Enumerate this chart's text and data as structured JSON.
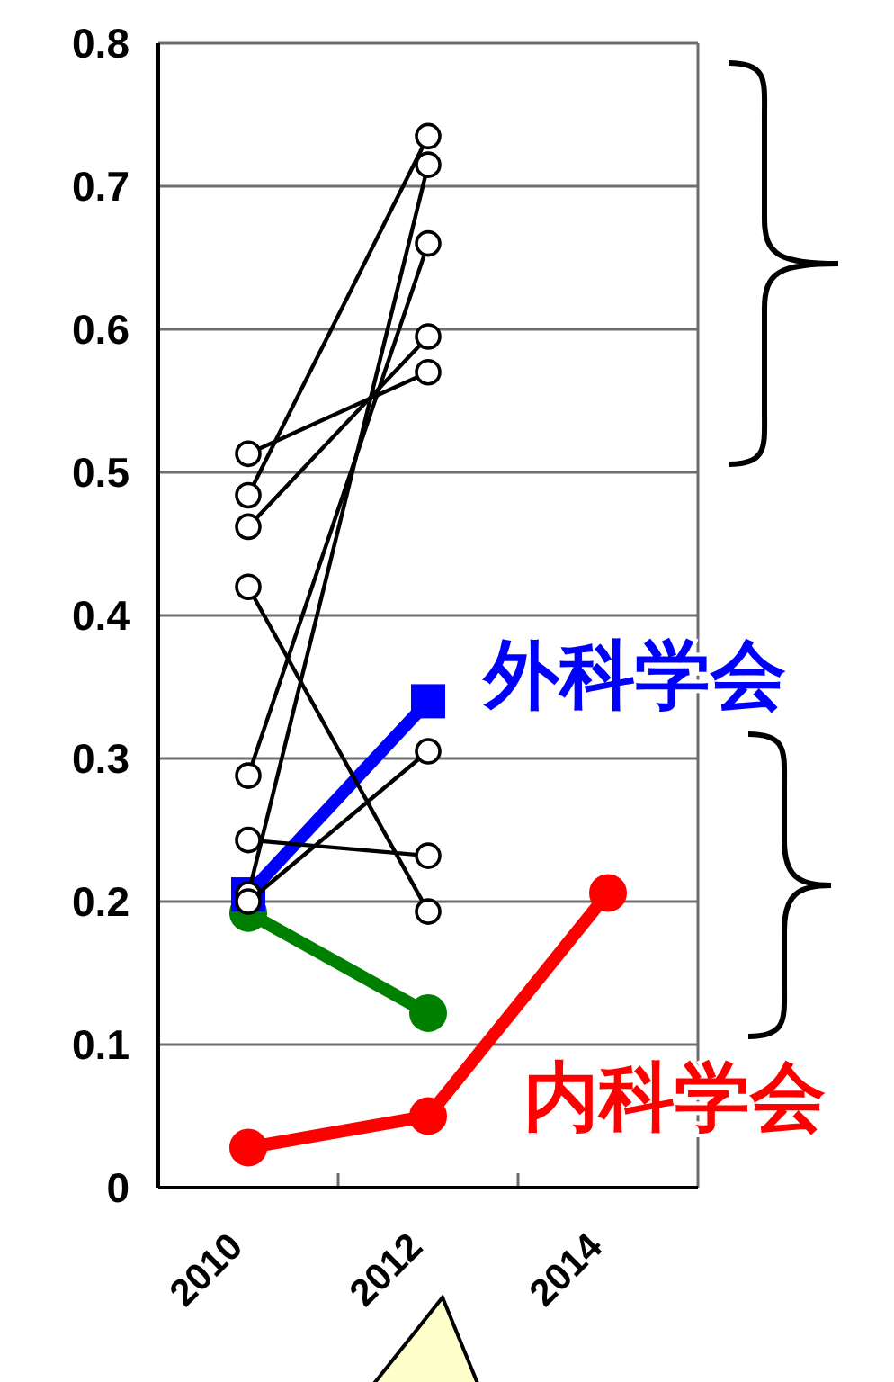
{
  "chart_data": {
    "type": "line",
    "categories": [
      "2010",
      "2012",
      "2014"
    ],
    "ylim": [
      0,
      0.8
    ],
    "yticks": [
      0,
      0.1,
      0.2,
      0.3,
      0.4,
      0.5,
      0.6,
      0.7,
      0.8
    ],
    "grid": "y",
    "marker": "circle",
    "line_style": "solid",
    "series": [
      {
        "color": "#000000",
        "values": [
          0.484,
          0.735,
          null
        ]
      },
      {
        "color": "#000000",
        "values": [
          0.205,
          0.715,
          null
        ]
      },
      {
        "color": "#000000",
        "values": [
          0.288,
          0.66,
          null
        ]
      },
      {
        "color": "#000000",
        "values": [
          0.462,
          0.595,
          null
        ]
      },
      {
        "color": "#000000",
        "values": [
          0.513,
          0.57,
          null
        ]
      },
      {
        "color": "#000000",
        "values": [
          0.2,
          0.305,
          null
        ]
      },
      {
        "color": "#000000",
        "values": [
          0.243,
          0.232,
          null
        ]
      },
      {
        "color": "#000000",
        "values": [
          0.42,
          0.193,
          null
        ]
      },
      {
        "color": "#008000",
        "values": [
          0.192,
          0.122,
          null
        ]
      },
      {
        "name": "外科学会",
        "color": "#0000ff",
        "marker": "square",
        "values": [
          0.205,
          0.34,
          null
        ]
      },
      {
        "name": "内科学会",
        "color": "#ff0000",
        "values": [
          0.028,
          0.05,
          0.206
        ]
      }
    ]
  }
}
